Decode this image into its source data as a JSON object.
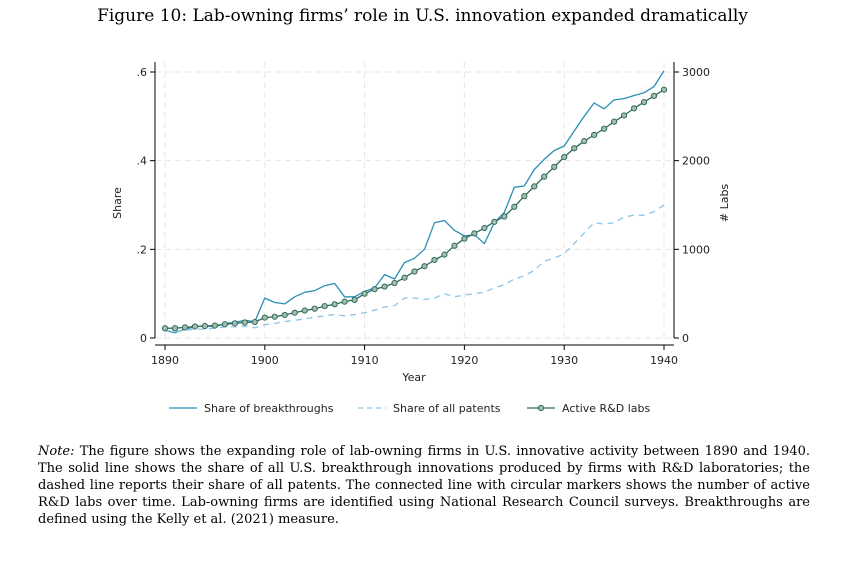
{
  "figure_title": "Figure 10: Lab-owning firms’ role in U.S. innovation expanded dramatically",
  "note": {
    "label": "Note:",
    "text": "The figure shows the expanding role of lab-owning firms in U.S. innovative activity between 1890 and 1940. The solid line shows the share of all U.S. breakthrough innovations produced by firms with R&D laboratories; the dashed line reports their share of all patents. The connected line with circular markers shows the number of active R&D labs over time. Lab-owning firms are identified using National Research Council surveys. Breakthroughs are defined using the Kelly et al. (2021) measure."
  },
  "colors": {
    "breakthroughs": "#2a8fb5",
    "patents": "#8cc4e8",
    "labs": "#2f6b58",
    "labs_marker_fill": "#a6bdb3",
    "grid": "#e6e6e6"
  },
  "chart_data": {
    "type": "line",
    "title": "",
    "xlabel": "Year",
    "ylabel": "Share",
    "ylabel_right": "# Labs",
    "xlim": [
      1890,
      1940
    ],
    "ylim": [
      0,
      0.6
    ],
    "ylim_right": [
      0,
      3000
    ],
    "x_ticks": [
      "1890",
      "1900",
      "1910",
      "1920",
      "1930",
      "1940"
    ],
    "y_ticks": [
      "0",
      ".2",
      ".4",
      ".6"
    ],
    "y_ticks_right": [
      "0",
      "1000",
      "2000",
      "3000"
    ],
    "legend_position": "bottom",
    "x": [
      1890,
      1891,
      1892,
      1893,
      1894,
      1895,
      1896,
      1897,
      1898,
      1899,
      1900,
      1901,
      1902,
      1903,
      1904,
      1905,
      1906,
      1907,
      1908,
      1909,
      1910,
      1911,
      1912,
      1913,
      1914,
      1915,
      1916,
      1917,
      1918,
      1919,
      1920,
      1921,
      1922,
      1923,
      1924,
      1925,
      1926,
      1927,
      1928,
      1929,
      1930,
      1931,
      1932,
      1933,
      1934,
      1935,
      1936,
      1937,
      1938,
      1939,
      1940
    ],
    "series": [
      {
        "name": "Share of breakthroughs",
        "axis": "left",
        "style": "solid",
        "values": [
          0.017,
          0.012,
          0.02,
          0.025,
          0.027,
          0.025,
          0.033,
          0.035,
          0.04,
          0.037,
          0.09,
          0.08,
          0.077,
          0.093,
          0.103,
          0.107,
          0.118,
          0.123,
          0.093,
          0.093,
          0.105,
          0.113,
          0.143,
          0.133,
          0.17,
          0.18,
          0.2,
          0.26,
          0.265,
          0.243,
          0.23,
          0.233,
          0.213,
          0.26,
          0.283,
          0.34,
          0.343,
          0.38,
          0.403,
          0.423,
          0.433,
          0.467,
          0.5,
          0.53,
          0.517,
          0.537,
          0.54,
          0.547,
          0.553,
          0.567,
          0.603
        ]
      },
      {
        "name": "Share of all patents",
        "axis": "left",
        "style": "dashed",
        "values": [
          0.017,
          0.015,
          0.017,
          0.02,
          0.02,
          0.022,
          0.025,
          0.025,
          0.027,
          0.023,
          0.03,
          0.033,
          0.037,
          0.04,
          0.043,
          0.047,
          0.05,
          0.053,
          0.05,
          0.053,
          0.057,
          0.063,
          0.07,
          0.073,
          0.09,
          0.09,
          0.087,
          0.09,
          0.1,
          0.093,
          0.097,
          0.1,
          0.103,
          0.113,
          0.12,
          0.133,
          0.14,
          0.153,
          0.173,
          0.18,
          0.19,
          0.213,
          0.237,
          0.26,
          0.257,
          0.26,
          0.273,
          0.277,
          0.277,
          0.285,
          0.3
        ]
      },
      {
        "name": "Active R&D labs",
        "axis": "right",
        "style": "markers",
        "values": [
          110,
          110,
          120,
          130,
          135,
          140,
          155,
          165,
          175,
          180,
          230,
          240,
          260,
          285,
          310,
          330,
          360,
          380,
          410,
          430,
          500,
          550,
          580,
          620,
          680,
          750,
          810,
          880,
          940,
          1040,
          1120,
          1180,
          1240,
          1310,
          1370,
          1480,
          1600,
          1710,
          1820,
          1930,
          2040,
          2140,
          2220,
          2290,
          2360,
          2440,
          2510,
          2590,
          2660,
          2730,
          2800
        ]
      }
    ]
  }
}
